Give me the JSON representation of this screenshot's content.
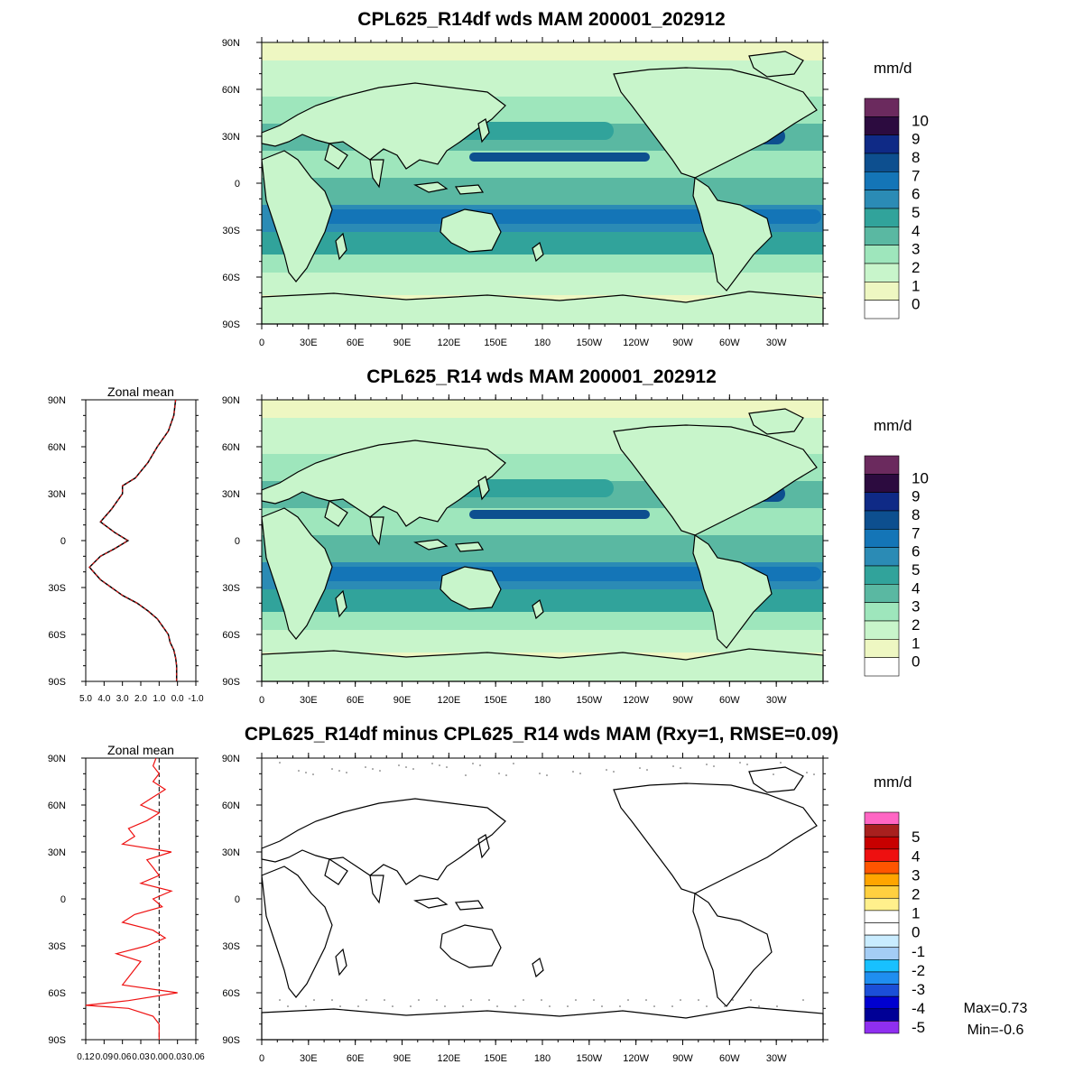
{
  "panels": [
    {
      "title": "CPL625_R14df wds MAM 200001_202912",
      "units": "mm/d",
      "colorbar": {
        "labels": [
          "10",
          "9",
          "8",
          "7",
          "6",
          "5",
          "4",
          "3",
          "2",
          "1",
          "0"
        ],
        "colors": [
          "#6b2a5e",
          "#2c0b3f",
          "#0f2a86",
          "#0d4f8f",
          "#1475b7",
          "#2b8bb5",
          "#31a39b",
          "#5ab8a2",
          "#9ee6bc",
          "#c8f5cb",
          "#eef7c2",
          "#ffffff"
        ]
      }
    },
    {
      "title": "CPL625_R14 wds MAM 200001_202912",
      "units": "mm/d",
      "colorbar": {
        "labels": [
          "10",
          "9",
          "8",
          "7",
          "6",
          "5",
          "4",
          "3",
          "2",
          "1",
          "0"
        ],
        "colors": [
          "#6b2a5e",
          "#2c0b3f",
          "#0f2a86",
          "#0d4f8f",
          "#1475b7",
          "#2b8bb5",
          "#31a39b",
          "#5ab8a2",
          "#9ee6bc",
          "#c8f5cb",
          "#eef7c2",
          "#ffffff"
        ]
      },
      "zonal": {
        "title": "Zonal mean",
        "xticks": [
          "5.0",
          "4.0",
          "3.0",
          "2.0",
          "1.0",
          "0.0",
          "-1.0"
        ]
      }
    },
    {
      "title": "CPL625_R14df minus CPL625_R14 wds MAM (Rxy=1, RMSE=0.09)",
      "units": "mm/d",
      "colorbar": {
        "labels": [
          "5",
          "4",
          "3",
          "2",
          "1",
          "0",
          "-1",
          "-2",
          "-3",
          "-4",
          "-5"
        ],
        "colors": [
          "#ff66c4",
          "#a8201e",
          "#c80000",
          "#ee1010",
          "#ff5500",
          "#ffa500",
          "#ffd040",
          "#fff08c",
          "#ffffff",
          "#ffffff",
          "#c9ecff",
          "#a4cdf5",
          "#18c0ff",
          "#1f8ef0",
          "#1b4fd8",
          "#0000d0",
          "#000096",
          "#8f2ff0"
        ]
      },
      "zonal": {
        "title": "Zonal mean",
        "xticks": [
          "0.12",
          "0.09",
          "0.06",
          "0.03",
          "0.00",
          "0.03",
          "0.06"
        ]
      },
      "stats": {
        "max": "Max=0.73",
        "min": "Min=-0.6"
      }
    }
  ],
  "lat_labels": [
    "90N",
    "60N",
    "30N",
    "0",
    "30S",
    "60S",
    "90S"
  ],
  "lon_labels": [
    "0",
    "30E",
    "60E",
    "90E",
    "120E",
    "150E",
    "180",
    "150W",
    "120W",
    "90W",
    "60W",
    "30W"
  ],
  "zonal_mean_profile": {
    "lat": [
      90,
      80,
      70,
      60,
      50,
      40,
      35,
      30,
      20,
      12,
      5,
      0,
      -5,
      -10,
      -17,
      -25,
      -30,
      -35,
      -40,
      -45,
      -50,
      -55,
      -60,
      -65,
      -70,
      -75,
      -80,
      -90
    ],
    "value": [
      0.1,
      0.2,
      0.5,
      1.1,
      1.6,
      2.3,
      3.0,
      3.0,
      3.6,
      4.2,
      3.4,
      2.7,
      3.4,
      4.2,
      4.8,
      4.2,
      3.6,
      3.0,
      2.2,
      1.6,
      1.1,
      0.8,
      0.5,
      0.4,
      0.2,
      0.1,
      0.05,
      0.05
    ]
  },
  "zonal_mean_diff": {
    "lat": [
      90,
      85,
      80,
      75,
      70,
      65,
      60,
      55,
      50,
      45,
      40,
      35,
      30,
      25,
      20,
      15,
      10,
      5,
      0,
      -5,
      -10,
      -15,
      -20,
      -25,
      -30,
      -35,
      -40,
      -45,
      -50,
      -55,
      -60,
      -65,
      -68,
      -70,
      -75,
      -80,
      -90
    ],
    "value": [
      -0.005,
      -0.01,
      0.0,
      -0.01,
      0.01,
      -0.01,
      -0.03,
      0.0,
      -0.02,
      -0.05,
      -0.04,
      -0.06,
      0.02,
      -0.02,
      -0.01,
      0.0,
      -0.03,
      0.02,
      -0.01,
      0.005,
      -0.04,
      -0.06,
      -0.01,
      0.01,
      -0.02,
      -0.07,
      -0.03,
      -0.04,
      -0.05,
      -0.06,
      0.03,
      -0.05,
      -0.12,
      -0.05,
      -0.01,
      0.0,
      0.0
    ]
  }
}
